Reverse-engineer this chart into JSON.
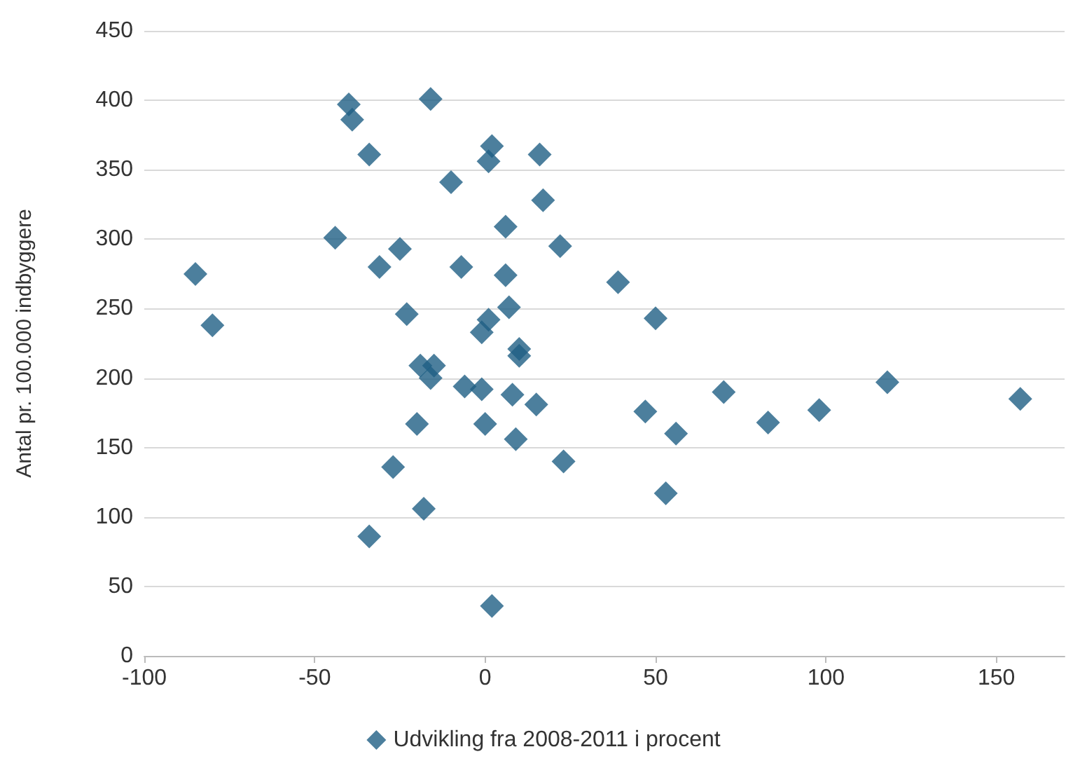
{
  "chart_data": {
    "type": "scatter",
    "ylabel": "Antal pr. 100.000 indbyggere",
    "xlim": [
      -100,
      170
    ],
    "xticks": [
      -100,
      -50,
      0,
      50,
      100,
      150
    ],
    "ylim": [
      0,
      450
    ],
    "yticks": [
      0,
      50,
      100,
      150,
      200,
      250,
      300,
      350,
      400,
      450
    ],
    "grid": "y",
    "legend": "bottom",
    "marker": "diamond",
    "series": [
      {
        "name": "Udvikling fra 2008-2011 i procent",
        "color": "#1f5f85",
        "x": [
          -85,
          -80,
          -40,
          -39,
          -16,
          -34,
          -44,
          -25,
          -31,
          -10,
          -7,
          -23,
          2,
          1,
          16,
          17,
          6,
          22,
          6,
          39,
          7,
          1,
          -1,
          50,
          10,
          10,
          -19,
          -15,
          -16,
          -6,
          -1,
          8,
          15,
          70,
          118,
          157,
          47,
          98,
          83,
          56,
          -20,
          0,
          9,
          23,
          -27,
          53,
          -18,
          -34,
          2
        ],
        "values": [
          275,
          238,
          397,
          386,
          401,
          361,
          301,
          293,
          280,
          341,
          280,
          246,
          367,
          356,
          361,
          328,
          309,
          295,
          274,
          269,
          251,
          242,
          233,
          243,
          221,
          216,
          209,
          209,
          200,
          194,
          192,
          188,
          181,
          190,
          197,
          185,
          176,
          177,
          168,
          160,
          167,
          167,
          156,
          140,
          136,
          117,
          106,
          86,
          36
        ]
      }
    ]
  }
}
